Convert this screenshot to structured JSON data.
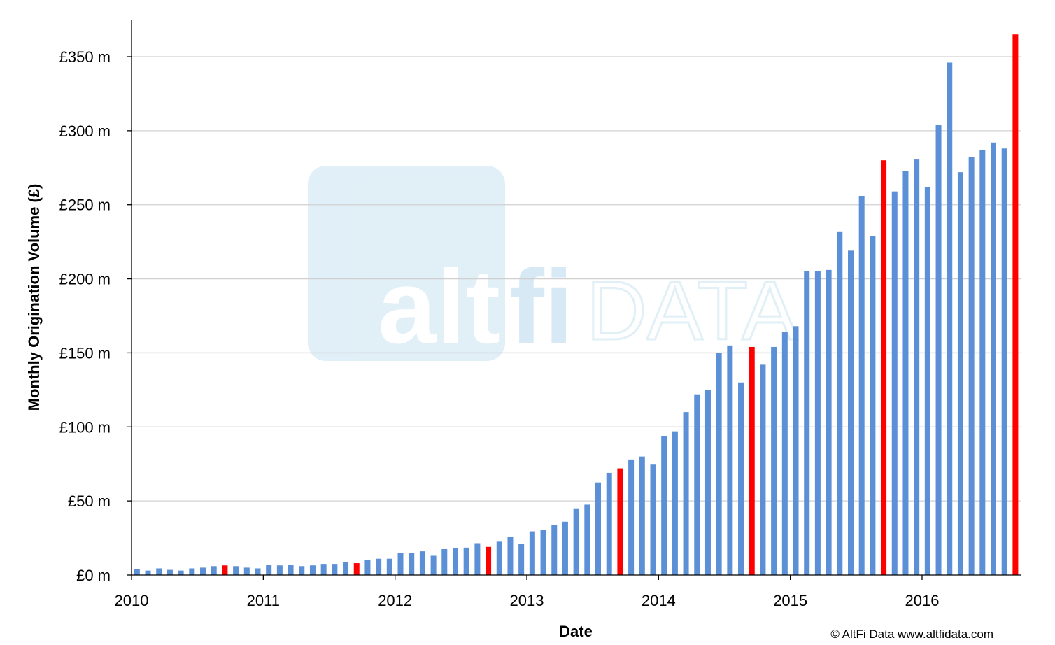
{
  "chart_data": {
    "type": "bar",
    "title": "",
    "xlabel": "Date",
    "ylabel": "Monthly Origination Volume (£)",
    "ylim": [
      0,
      375
    ],
    "y_unit": "£ m",
    "yticks": [
      0,
      50,
      100,
      150,
      200,
      250,
      300,
      350
    ],
    "ytick_labels": [
      "£0 m",
      "£50 m",
      "£100 m",
      "£150 m",
      "£200 m",
      "£250 m",
      "£300 m",
      "£350 m"
    ],
    "xtick_labels": [
      "2010",
      "2011",
      "2012",
      "2013",
      "2014",
      "2015",
      "2016"
    ],
    "grid": true,
    "legend": "none",
    "start_month": "2010-01",
    "values": [
      4,
      3,
      4.5,
      3.5,
      3,
      4.5,
      5,
      6,
      6.5,
      6,
      5,
      4.5,
      7,
      6.5,
      7,
      6,
      6.5,
      7.5,
      7.5,
      8.5,
      8,
      10,
      11,
      11,
      15,
      15,
      16,
      13,
      17.5,
      18,
      18.5,
      21.5,
      19,
      22.5,
      26,
      21,
      29.5,
      30.5,
      34,
      36,
      45,
      47.5,
      62.5,
      69,
      72,
      78,
      80,
      75,
      94,
      97,
      110,
      122,
      125,
      150,
      155,
      130,
      154,
      142,
      154,
      164,
      168,
      205,
      205,
      206,
      232,
      219,
      256,
      229,
      280,
      259,
      273,
      281,
      262,
      304,
      346,
      272,
      282,
      287,
      292,
      288,
      365
    ],
    "highlight_indices": [
      8,
      20,
      32,
      44,
      56,
      68,
      80
    ],
    "bar_color": "#5B8FD6",
    "highlight_color": "#FF0000",
    "gridline_color": "#D0D0D0"
  },
  "watermark": {
    "alt": "alt",
    "fi": "fi",
    "data": "DATA"
  },
  "credit": "© AltFi Data www.altfidata.com"
}
